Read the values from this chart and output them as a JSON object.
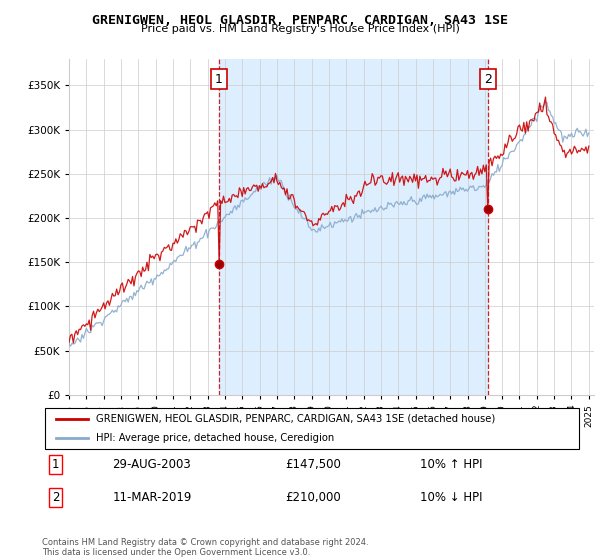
{
  "title": "GRENIGWEN, HEOL GLASDIR, PENPARC, CARDIGAN, SA43 1SE",
  "subtitle": "Price paid vs. HM Land Registry's House Price Index (HPI)",
  "legend_line1": "GRENIGWEN, HEOL GLASDIR, PENPARC, CARDIGAN, SA43 1SE (detached house)",
  "legend_line2": "HPI: Average price, detached house, Ceredigion",
  "annotation1_date": "29-AUG-2003",
  "annotation1_price": "£147,500",
  "annotation1_hpi": "10% ↑ HPI",
  "annotation2_date": "11-MAR-2019",
  "annotation2_price": "£210,000",
  "annotation2_hpi": "10% ↓ HPI",
  "footer": "Contains HM Land Registry data © Crown copyright and database right 2024.\nThis data is licensed under the Open Government Licence v3.0.",
  "ylim": [
    0,
    380000
  ],
  "yticks": [
    0,
    50000,
    100000,
    150000,
    200000,
    250000,
    300000,
    350000
  ],
  "year_start": 1995,
  "year_end": 2025,
  "sale1_year": 2003.66,
  "sale1_price": 147500,
  "sale2_year": 2019.19,
  "sale2_price": 210000,
  "red_color": "#cc0000",
  "blue_color": "#88aacc",
  "shade_color": "#ddeeff",
  "bg_color": "#ffffff",
  "grid_color": "#cccccc"
}
